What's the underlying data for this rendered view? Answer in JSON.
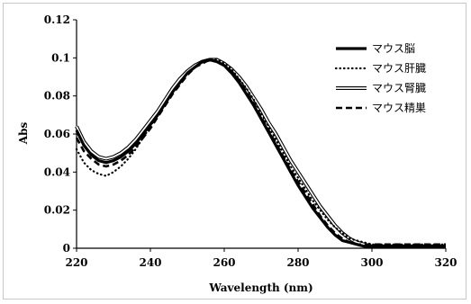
{
  "chart_data": {
    "type": "line",
    "xlabel": "Wavelength (nm)",
    "ylabel": "Abs",
    "xlim": [
      220,
      320
    ],
    "ylim": [
      0,
      0.12
    ],
    "xticks": [
      "220",
      "240",
      "260",
      "280",
      "300",
      "320"
    ],
    "yticks": [
      "0",
      "0.02",
      "0.04",
      "0.06",
      "0.08",
      "0.1",
      "0.12"
    ],
    "grid": false,
    "legend_position": "top-right",
    "x": [
      220,
      222,
      224,
      226,
      228,
      230,
      232,
      234,
      236,
      238,
      240,
      242,
      244,
      246,
      248,
      250,
      252,
      254,
      256,
      258,
      260,
      262,
      264,
      266,
      268,
      270,
      272,
      274,
      276,
      278,
      280,
      282,
      284,
      286,
      288,
      290,
      292,
      294,
      296,
      298,
      300,
      302,
      304,
      306,
      308,
      310,
      312,
      314,
      316,
      318,
      320
    ],
    "series": [
      {
        "name": "マウス脳",
        "style": "solid-thick",
        "values": [
          0.062,
          0.054,
          0.049,
          0.046,
          0.045,
          0.046,
          0.048,
          0.051,
          0.055,
          0.06,
          0.065,
          0.07,
          0.076,
          0.082,
          0.087,
          0.092,
          0.095,
          0.098,
          0.099,
          0.098,
          0.096,
          0.092,
          0.087,
          0.081,
          0.075,
          0.068,
          0.061,
          0.054,
          0.047,
          0.04,
          0.033,
          0.027,
          0.021,
          0.016,
          0.011,
          0.007,
          0.004,
          0.003,
          0.002,
          0.001,
          0.001,
          0.001,
          0.001,
          0.001,
          0.001,
          0.001,
          0.001,
          0.001,
          0.001,
          0.001,
          0.001
        ]
      },
      {
        "name": "マウス肝臓",
        "style": "dotted",
        "values": [
          0.052,
          0.045,
          0.041,
          0.039,
          0.038,
          0.04,
          0.043,
          0.047,
          0.052,
          0.058,
          0.064,
          0.07,
          0.076,
          0.082,
          0.087,
          0.092,
          0.095,
          0.098,
          0.099,
          0.099,
          0.097,
          0.094,
          0.089,
          0.084,
          0.078,
          0.071,
          0.064,
          0.057,
          0.05,
          0.043,
          0.037,
          0.031,
          0.025,
          0.02,
          0.015,
          0.011,
          0.008,
          0.005,
          0.004,
          0.003,
          0.002,
          0.002,
          0.002,
          0.002,
          0.002,
          0.002,
          0.002,
          0.002,
          0.002,
          0.002,
          0.002
        ]
      },
      {
        "name": "マウス腎臓",
        "style": "double",
        "values": [
          0.064,
          0.056,
          0.051,
          0.048,
          0.047,
          0.048,
          0.05,
          0.053,
          0.057,
          0.062,
          0.067,
          0.072,
          0.078,
          0.084,
          0.089,
          0.093,
          0.096,
          0.098,
          0.099,
          0.099,
          0.097,
          0.094,
          0.09,
          0.085,
          0.079,
          0.073,
          0.066,
          0.06,
          0.053,
          0.046,
          0.04,
          0.034,
          0.028,
          0.022,
          0.017,
          0.012,
          0.008,
          0.005,
          0.003,
          0.002,
          0.001,
          0.001,
          0.001,
          0.001,
          0.001,
          0.001,
          0.001,
          0.001,
          0.001,
          0.001,
          0.001
        ]
      },
      {
        "name": "マウス精巣",
        "style": "dashed",
        "values": [
          0.058,
          0.051,
          0.047,
          0.044,
          0.043,
          0.044,
          0.046,
          0.049,
          0.053,
          0.058,
          0.063,
          0.069,
          0.075,
          0.081,
          0.086,
          0.091,
          0.095,
          0.097,
          0.099,
          0.098,
          0.096,
          0.093,
          0.088,
          0.082,
          0.076,
          0.069,
          0.062,
          0.055,
          0.048,
          0.041,
          0.035,
          0.029,
          0.023,
          0.017,
          0.012,
          0.008,
          0.005,
          0.003,
          0.002,
          0.002,
          0.002,
          0.002,
          0.002,
          0.002,
          0.002,
          0.002,
          0.002,
          0.002,
          0.002,
          0.002,
          0.002
        ]
      }
    ]
  }
}
